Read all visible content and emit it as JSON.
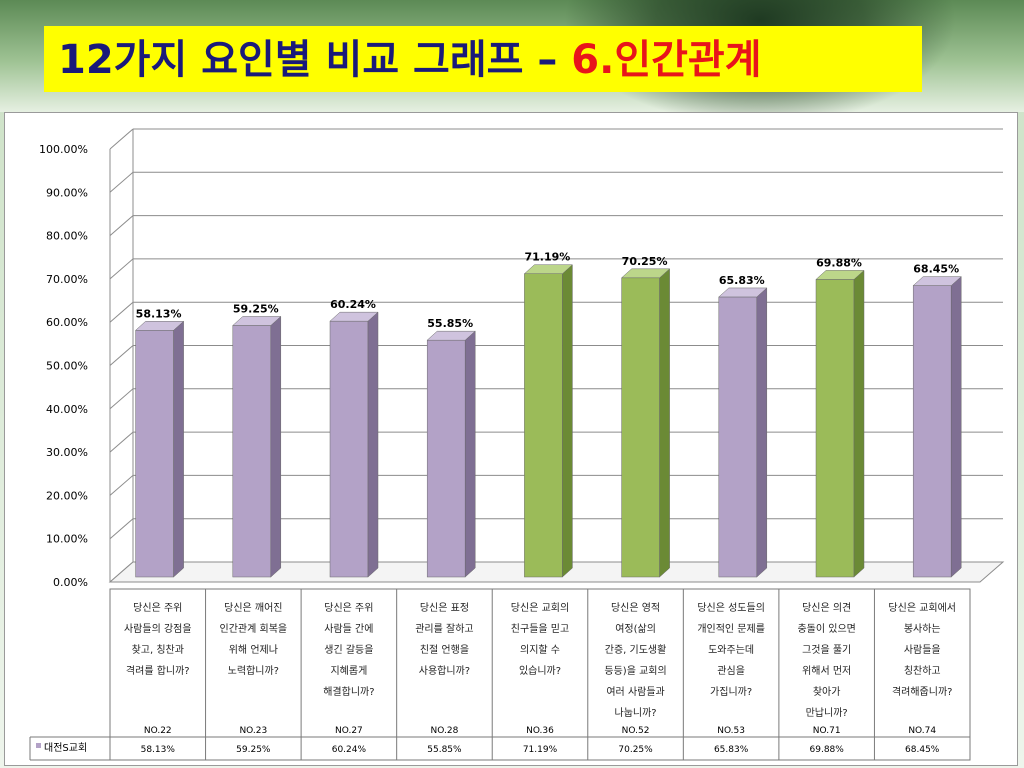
{
  "header": {
    "title_main": "12가지 요인별 비교 그래프 – ",
    "title_accent": "6.인간관계"
  },
  "chart_data": {
    "type": "bar",
    "ylim": [
      0,
      100
    ],
    "yticks": [
      "0.00%",
      "10.00%",
      "20.00%",
      "30.00%",
      "40.00%",
      "50.00%",
      "60.00%",
      "70.00%",
      "80.00%",
      "90.00%",
      "100.00%"
    ],
    "categories": [
      "당신은 주위 사람들의 강점을 찾고, 칭찬과 격려를 합니까?",
      "당신은 깨어진 인간관계 회복을 위해 언제나 노력합니까?",
      "당신은 주위 사람들 간에 생긴 갈등을 지혜롭게 해결합니까?",
      "당신은 표정 관리를 잘하고 친절 언행을 사용합니까?",
      "당신은 교회의 친구들을 믿고 의지할 수 있습니까?",
      "당신은 영적 여정(삶의 간증, 기도생활 등등)을 교회의 여러 사람들과 나눕니까?",
      "당신은 성도들의 개인적인 문제를 도와주는데 관심을 가집니까?",
      "당신은 의견 충돌이 있으면 그것을 풀기 위해서 먼저 찾아가 만납니까?",
      "당신은 교회에서 봉사하는 사람들을 칭찬하고 격려해줍니까?"
    ],
    "category_lines": [
      [
        "당신은 주위",
        "사람들의 강점을",
        "찾고, 칭찬과",
        "격려를 합니까?"
      ],
      [
        "당신은 깨어진",
        "인간관계 회복을",
        "위해 언제나",
        "노력합니까?"
      ],
      [
        "당신은 주위",
        "사람들 간에",
        "생긴 갈등을",
        "지혜롭게",
        "해결합니까?"
      ],
      [
        "당신은 표정",
        "관리를 잘하고",
        "친절 언행을",
        "사용합니까?"
      ],
      [
        "당신은 교회의",
        "친구들을 믿고",
        "의지할 수",
        "있습니까?"
      ],
      [
        "당신은 영적",
        "여정(삶의",
        "간증, 기도생활",
        "등등)을 교회의",
        "여러 사람들과",
        "나눕니까?"
      ],
      [
        "당신은 성도들의",
        "개인적인 문제를",
        "도와주는데",
        "관심을",
        "가집니까?"
      ],
      [
        "당신은 의견",
        "충돌이 있으면",
        "그것을 풀기",
        "위해서 먼저",
        "찾아가",
        "만납니까?"
      ],
      [
        "당신은 교회에서",
        "봉사하는",
        "사람들을",
        "칭찬하고",
        "격려해줍니까?"
      ]
    ],
    "question_numbers": [
      "NO.22",
      "NO.23",
      "NO.27",
      "NO.28",
      "NO.36",
      "NO.52",
      "NO.53",
      "NO.71",
      "NO.74"
    ],
    "series": [
      {
        "name": "대전S교회",
        "values": [
          58.13,
          59.25,
          60.24,
          55.85,
          71.19,
          70.25,
          65.83,
          69.88,
          68.45
        ],
        "labels": [
          "58.13%",
          "59.25%",
          "60.24%",
          "55.85%",
          "71.19%",
          "70.25%",
          "65.83%",
          "69.88%",
          "68.45%"
        ]
      }
    ],
    "bar_colors": [
      "purple",
      "purple",
      "purple",
      "purple",
      "green",
      "green",
      "purple",
      "green",
      "purple"
    ],
    "colors": {
      "purple": "#b3a2c7",
      "purple_side": "#7f6f93",
      "purple_top": "#cfc3de",
      "green": "#9bbb59",
      "green_side": "#6b8a35",
      "green_top": "#bcd68a",
      "grid": "#8c8c8c"
    },
    "grid": true,
    "legend_position": "table-left"
  }
}
